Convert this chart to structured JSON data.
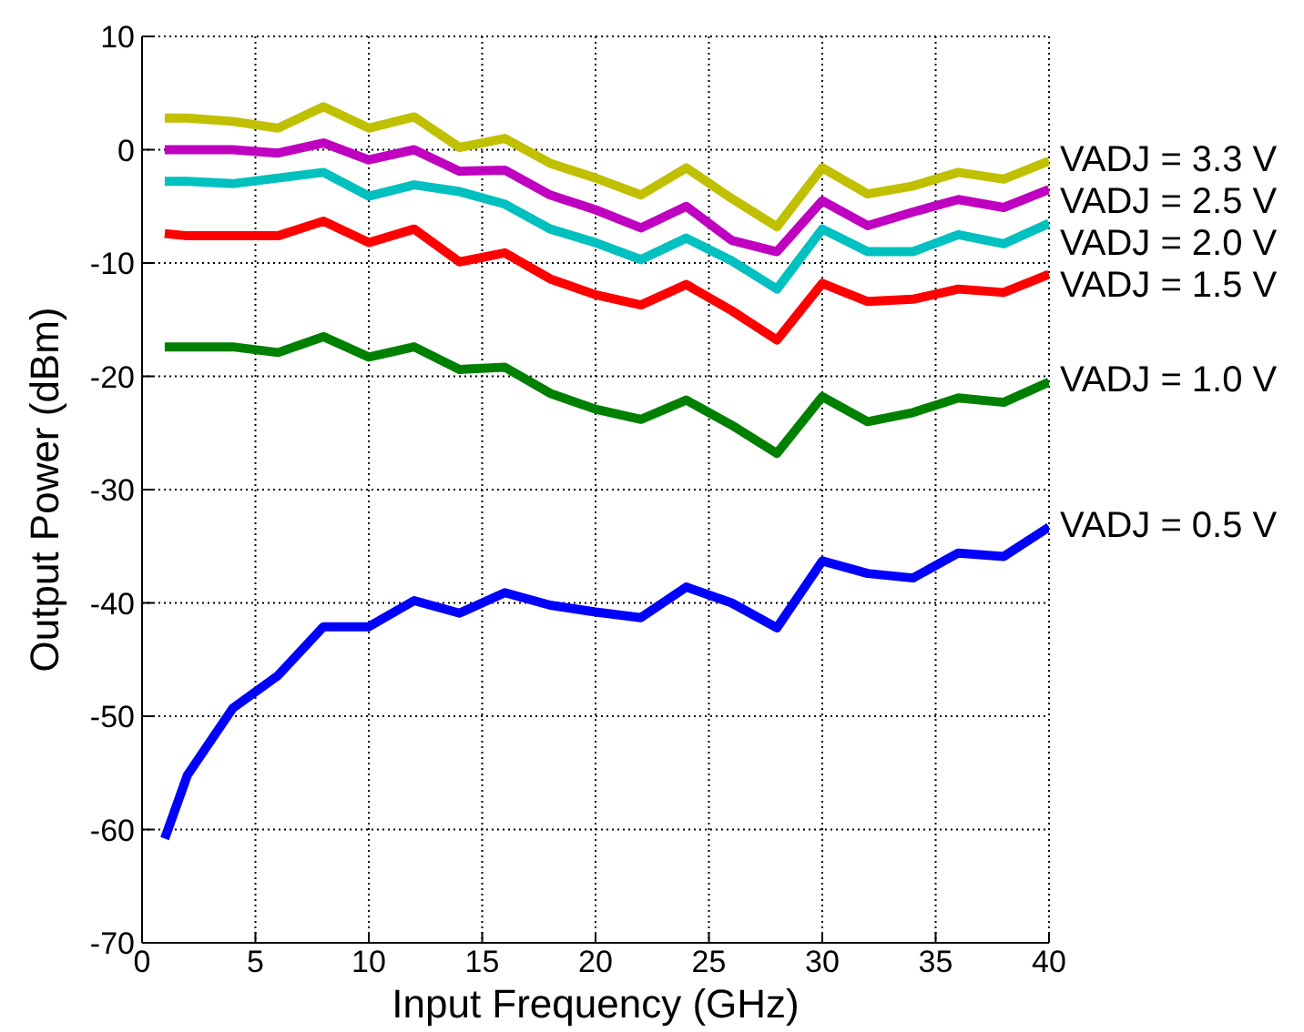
{
  "chart_data": {
    "type": "line",
    "xlabel": "Input Frequency (GHz)",
    "ylabel": "Output Power (dBm)",
    "x": [
      1,
      2,
      4,
      6,
      8,
      10,
      12,
      14,
      16,
      18,
      20,
      22,
      24,
      26,
      28,
      30,
      32,
      34,
      36,
      38,
      40
    ],
    "series": [
      {
        "name": "VADJ = 3.3 V",
        "color": "#c0c000",
        "values": [
          2.8,
          2.8,
          2.5,
          1.9,
          3.8,
          1.9,
          2.9,
          0.2,
          1.0,
          -1.2,
          -2.5,
          -4.0,
          -1.6,
          -4.3,
          -6.8,
          -1.6,
          -3.9,
          -3.2,
          -2.0,
          -2.6,
          -1.0
        ]
      },
      {
        "name": "VADJ = 2.5 V",
        "color": "#c000c0",
        "values": [
          0,
          0,
          0,
          -0.3,
          0.6,
          -0.9,
          0,
          -1.9,
          -1.8,
          -4.0,
          -5.3,
          -6.9,
          -5.0,
          -8.0,
          -9.0,
          -4.5,
          -6.7,
          -5.5,
          -4.4,
          -5.1,
          -3.5
        ]
      },
      {
        "name": "VADJ = 2.0 V",
        "color": "#00c0c0",
        "values": [
          -2.8,
          -2.8,
          -3.0,
          -2.5,
          -2.0,
          -4.1,
          -3.1,
          -3.7,
          -4.8,
          -7.0,
          -8.2,
          -9.7,
          -7.8,
          -9.8,
          -12.3,
          -7.0,
          -9.0,
          -9.0,
          -7.5,
          -8.3,
          -6.5
        ]
      },
      {
        "name": "VADJ = 1.5 V",
        "color": "#ff0000",
        "values": [
          -7.4,
          -7.6,
          -7.6,
          -7.6,
          -6.3,
          -8.2,
          -7.0,
          -9.9,
          -9.1,
          -11.4,
          -12.8,
          -13.7,
          -11.9,
          -14.2,
          -16.8,
          -11.8,
          -13.4,
          -13.2,
          -12.3,
          -12.6,
          -11.0
        ]
      },
      {
        "name": "VADJ = 1.0 V",
        "color": "#008000",
        "values": [
          -17.4,
          -17.4,
          -17.4,
          -17.9,
          -16.5,
          -18.3,
          -17.4,
          -19.4,
          -19.2,
          -21.5,
          -22.9,
          -23.8,
          -22.1,
          -24.3,
          -26.8,
          -21.8,
          -24.0,
          -23.2,
          -21.9,
          -22.3,
          -20.5
        ]
      },
      {
        "name": "VADJ = 0.5 V",
        "color": "#0000ff",
        "values": [
          -60.8,
          -55.2,
          -49.3,
          -46.4,
          -42.1,
          -42.1,
          -39.8,
          -40.9,
          -39.1,
          -40.2,
          -40.8,
          -41.3,
          -38.6,
          -40.0,
          -42.2,
          -36.3,
          -37.4,
          -37.8,
          -35.6,
          -35.9,
          -33.3
        ]
      }
    ],
    "xlim": [
      0,
      40
    ],
    "xticks": [
      0,
      5,
      10,
      15,
      20,
      25,
      30,
      35,
      40
    ],
    "ylim": [
      -70,
      10
    ],
    "yticks": [
      -70,
      -60,
      -50,
      -40,
      -30,
      -20,
      -10,
      0,
      10
    ],
    "grid": true,
    "marker": "none",
    "line_style": "solid"
  }
}
